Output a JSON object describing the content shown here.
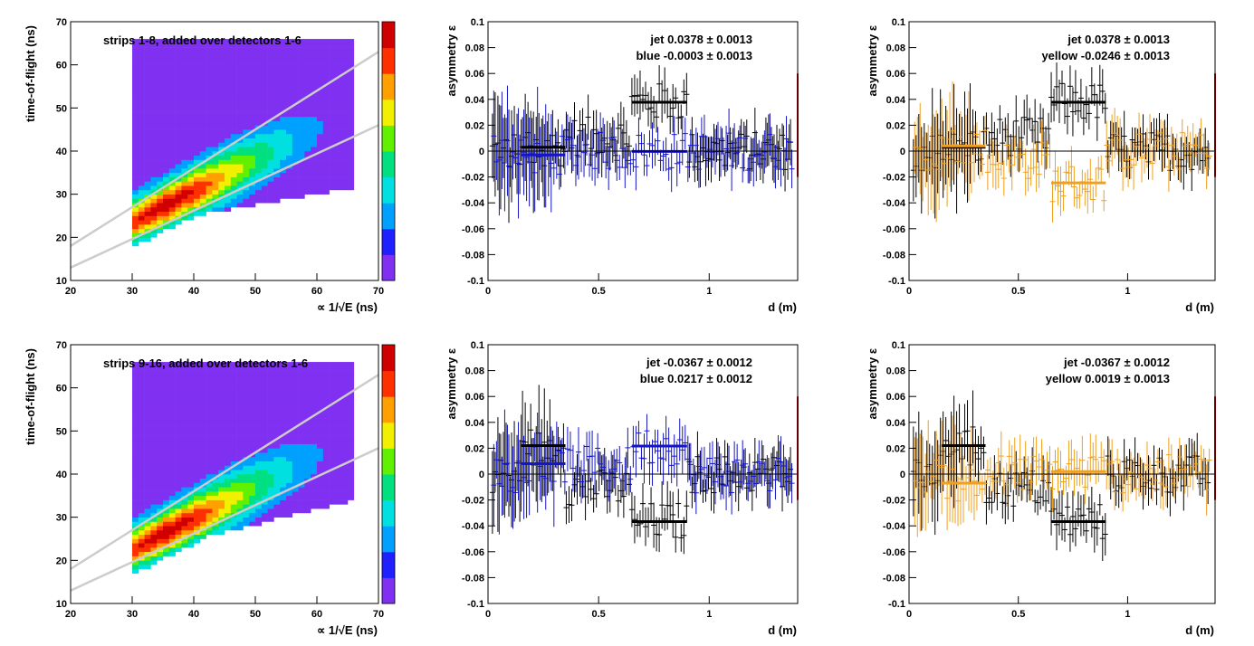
{
  "colors": {
    "jet": "#000000",
    "blue": "#1414c8",
    "yellow": "#f0a020",
    "frame": "#000000",
    "accent_edge": "#c80000",
    "fit_line": "#cccccc",
    "palette": [
      "#8030f0",
      "#2020ff",
      "#00a0ff",
      "#00e0e0",
      "#00e080",
      "#60f000",
      "#f0f000",
      "#ffa000",
      "#ff3000",
      "#d00000"
    ]
  },
  "chart_data": [
    {
      "type": "heatmap",
      "panel": "top-left",
      "ylabel": "time-of-flight (ns)",
      "xlabel": "∝ 1/√E (ns)",
      "annotation": "strips 1-8, added over detectors 1-6",
      "xlim": [
        20,
        70
      ],
      "ylim": [
        10,
        70
      ],
      "xticks": [
        "20",
        "30",
        "40",
        "50",
        "60",
        "70"
      ],
      "yticks": [
        "10",
        "20",
        "30",
        "40",
        "50",
        "60",
        "70"
      ],
      "band_lines": [
        {
          "x": [
            20,
            70
          ],
          "y": [
            18.0,
            63.0
          ]
        },
        {
          "x": [
            20,
            70
          ],
          "y": [
            13.0,
            46.0
          ]
        }
      ],
      "peak": {
        "x": 35,
        "y": 27
      }
    },
    {
      "type": "scatter",
      "panel": "top-middle",
      "ylabel": "asymmetry ε",
      "xlabel": "d (m)",
      "xlim": [
        0,
        1.4
      ],
      "ylim": [
        -0.1,
        0.1
      ],
      "xticks": [
        "0",
        "0.5",
        "1"
      ],
      "yticks": [
        "-0.1",
        "-0.08",
        "-0.06",
        "-0.04",
        "-0.02",
        "0",
        "0.02",
        "0.04",
        "0.06",
        "0.08",
        "0.1"
      ],
      "legend": [
        {
          "label": "jet  0.0378 ± 0.0013",
          "color": "#000000"
        },
        {
          "label": "blue -0.0003 ± 0.0013",
          "color": "#1414c8"
        }
      ],
      "series": [
        {
          "name": "jet",
          "fits": [
            {
              "x": [
                0.15,
                0.35
              ],
              "y": 0.003
            },
            {
              "x": [
                0.65,
                0.9
              ],
              "y": 0.0378
            }
          ]
        },
        {
          "name": "blue",
          "fits": [
            {
              "x": [
                0.15,
                0.35
              ],
              "y": -0.003
            },
            {
              "x": [
                0.65,
                0.9
              ],
              "y": -0.0003
            }
          ]
        }
      ]
    },
    {
      "type": "scatter",
      "panel": "top-right",
      "ylabel": "asymmetry ε",
      "xlabel": "d (m)",
      "xlim": [
        0,
        1.4
      ],
      "ylim": [
        -0.1,
        0.1
      ],
      "xticks": [
        "0",
        "0.5",
        "1"
      ],
      "yticks": [
        "-0.1",
        "-0.08",
        "-0.06",
        "-0.04",
        "-0.02",
        "0",
        "0.02",
        "0.04",
        "0.06",
        "0.08",
        "0.1"
      ],
      "legend": [
        {
          "label": "jet  0.0378 ± 0.0013",
          "color": "#000000"
        },
        {
          "label": "yellow -0.0246 ± 0.0013",
          "color": "#f0a020"
        }
      ],
      "series": [
        {
          "name": "jet",
          "fits": [
            {
              "x": [
                0.15,
                0.35
              ],
              "y": 0.003
            },
            {
              "x": [
                0.65,
                0.9
              ],
              "y": 0.0378
            }
          ]
        },
        {
          "name": "yellow",
          "fits": [
            {
              "x": [
                0.15,
                0.35
              ],
              "y": 0.004
            },
            {
              "x": [
                0.65,
                0.9
              ],
              "y": -0.0246
            }
          ]
        }
      ]
    },
    {
      "type": "heatmap",
      "panel": "bottom-left",
      "ylabel": "time-of-flight (ns)",
      "xlabel": "∝ 1/√E (ns)",
      "annotation": "strips 9-16, added over detectors 1-6",
      "xlim": [
        20,
        70
      ],
      "ylim": [
        10,
        70
      ],
      "xticks": [
        "20",
        "30",
        "40",
        "50",
        "60",
        "70"
      ],
      "yticks": [
        "10",
        "20",
        "30",
        "40",
        "50",
        "60",
        "70"
      ],
      "band_lines": [
        {
          "x": [
            20,
            70
          ],
          "y": [
            18.0,
            63.0
          ]
        },
        {
          "x": [
            20,
            70
          ],
          "y": [
            13.0,
            46.0
          ]
        }
      ],
      "peak": {
        "x": 35,
        "y": 26
      }
    },
    {
      "type": "scatter",
      "panel": "bottom-middle",
      "ylabel": "asymmetry ε",
      "xlabel": "d (m)",
      "xlim": [
        0,
        1.4
      ],
      "ylim": [
        -0.1,
        0.1
      ],
      "xticks": [
        "0",
        "0.5",
        "1"
      ],
      "yticks": [
        "-0.1",
        "-0.08",
        "-0.06",
        "-0.04",
        "-0.02",
        "0",
        "0.02",
        "0.04",
        "0.06",
        "0.08",
        "0.1"
      ],
      "legend": [
        {
          "label": "jet -0.0367 ± 0.0012",
          "color": "#000000"
        },
        {
          "label": "blue  0.0217 ± 0.0012",
          "color": "#1414c8"
        }
      ],
      "series": [
        {
          "name": "jet",
          "fits": [
            {
              "x": [
                0.15,
                0.35
              ],
              "y": 0.022
            },
            {
              "x": [
                0.65,
                0.9
              ],
              "y": -0.0367
            }
          ]
        },
        {
          "name": "blue",
          "fits": [
            {
              "x": [
                0.15,
                0.35
              ],
              "y": 0.008
            },
            {
              "x": [
                0.65,
                0.9
              ],
              "y": 0.0217
            }
          ]
        }
      ]
    },
    {
      "type": "scatter",
      "panel": "bottom-right",
      "ylabel": "asymmetry ε",
      "xlabel": "d (m)",
      "xlim": [
        0,
        1.4
      ],
      "ylim": [
        -0.1,
        0.1
      ],
      "xticks": [
        "0",
        "0.5",
        "1"
      ],
      "yticks": [
        "-0.1",
        "-0.08",
        "-0.06",
        "-0.04",
        "-0.02",
        "0",
        "0.02",
        "0.04",
        "0.06",
        "0.08",
        "0.1"
      ],
      "legend": [
        {
          "label": "jet -0.0367 ± 0.0012",
          "color": "#000000"
        },
        {
          "label": "yellow  0.0019 ± 0.0013",
          "color": "#f0a020"
        }
      ],
      "series": [
        {
          "name": "jet",
          "fits": [
            {
              "x": [
                0.15,
                0.35
              ],
              "y": 0.022
            },
            {
              "x": [
                0.65,
                0.9
              ],
              "y": -0.0367
            }
          ]
        },
        {
          "name": "yellow",
          "fits": [
            {
              "x": [
                0.15,
                0.35
              ],
              "y": -0.007
            },
            {
              "x": [
                0.65,
                0.9
              ],
              "y": 0.0019
            }
          ]
        }
      ]
    }
  ]
}
